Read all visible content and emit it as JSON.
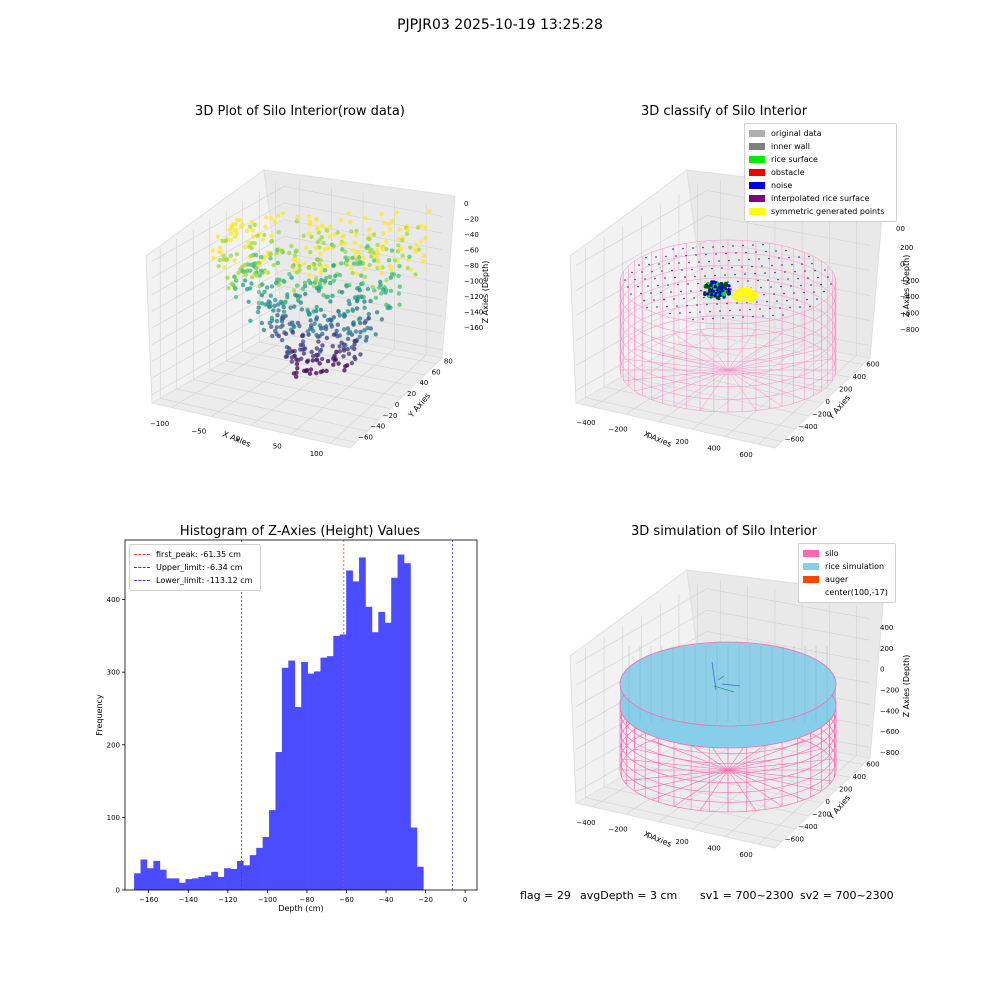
{
  "suptitle": "PJPJR03 2025-10-19 13:25:28",
  "panels": {
    "raw": {
      "title": "3D Plot of Silo Interior(row data)",
      "xlabel": "X Axies",
      "ylabel": "Y Axies",
      "zlabel": "Z Axies (Depth)",
      "xticks": [
        "−100",
        "−50",
        "0",
        "50",
        "100"
      ],
      "yticks": [
        "−60",
        "−40",
        "−20",
        "0",
        "20",
        "40",
        "60",
        "80"
      ],
      "zticks": [
        "0",
        "−20",
        "−40",
        "−60",
        "−80",
        "−100",
        "−120",
        "−140",
        "−160"
      ]
    },
    "classify": {
      "title": "3D classify of Silo Interior",
      "xlabel": "X Axies",
      "ylabel": "Y Axies",
      "zlabel": "Z Axies (Depth)",
      "xticks": [
        "−400",
        "−200",
        "0",
        "200",
        "400",
        "600"
      ],
      "yticks": [
        "−600",
        "−400",
        "−200",
        "0",
        "200",
        "400",
        "600"
      ],
      "zticks": [
        "200",
        "0",
        "−200",
        "−400",
        "−600",
        "−800"
      ],
      "partial_ztick": "00",
      "legend": [
        {
          "label": "original data",
          "color": "#b0b0b0"
        },
        {
          "label": "inner wall",
          "color": "#808080"
        },
        {
          "label": "rice surface",
          "color": "#00ee00"
        },
        {
          "label": "obstacle",
          "color": "#ee0000"
        },
        {
          "label": "noise",
          "color": "#0000dd"
        },
        {
          "label": "interpolated rice surface",
          "color": "#800080"
        },
        {
          "label": "symmetric generated points",
          "color": "#ffff00"
        }
      ]
    },
    "simulation": {
      "title": "3D simulation of Silo Interior",
      "xlabel": "X Axies",
      "ylabel": "Y Axies",
      "zlabel": "Z Axies (Depth)",
      "xticks": [
        "−400",
        "−200",
        "0",
        "200",
        "400",
        "600"
      ],
      "yticks": [
        "−600",
        "−400",
        "−200",
        "0",
        "200",
        "400",
        "600"
      ],
      "zticks": [
        "400",
        "200",
        "0",
        "−200",
        "−400",
        "−600",
        "−800"
      ],
      "legend": [
        {
          "label": "silo",
          "color": "#ff69b4"
        },
        {
          "label": "rice simulation",
          "color": "#87ceeb"
        },
        {
          "label": "auger",
          "color": "#ff4500"
        },
        {
          "label": "center(100,-17)",
          "color": ""
        }
      ]
    }
  },
  "status": {
    "flag": "flag = 29",
    "avg_depth": "avgDepth = 3 cm",
    "sv1": "sv1 = 700~2300",
    "sv2": "sv2 = 700~2300"
  },
  "chart_data": {
    "type": "bar",
    "title": "Histogram of Z-Axies (Height) Values",
    "xlabel": "Depth (cm)",
    "ylabel": "Frequency",
    "xlim": [
      -172,
      6
    ],
    "ylim": [
      0,
      482
    ],
    "xticks": [
      -160,
      -140,
      -120,
      -100,
      -80,
      -60,
      -40,
      -20,
      0
    ],
    "yticks": [
      0,
      100,
      200,
      300,
      400
    ],
    "bar_color": "#4b4bff",
    "bin_start": -167.4,
    "bin_width": 3.25,
    "values": [
      23,
      42,
      30,
      40,
      28,
      16,
      16,
      10,
      15,
      16,
      18,
      20,
      25,
      18,
      30,
      29,
      40,
      34,
      48,
      58,
      73,
      110,
      190,
      306,
      316,
      252,
      314,
      298,
      301,
      320,
      322,
      350,
      352,
      440,
      425,
      458,
      390,
      355,
      383,
      368,
      430,
      462,
      450,
      86,
      32
    ],
    "vlines": [
      {
        "label": "first_peak: -61.35 cm",
        "x": -61.35,
        "color": "#e8413a"
      },
      {
        "label": "Upper_limit: -6.34 cm",
        "x": -6.34,
        "color": "#3b3bd0"
      },
      {
        "label": "Lower_limit: -113.12 cm",
        "x": -113.12,
        "color": "#3b3bd0"
      }
    ],
    "legend_position": "top-left"
  }
}
